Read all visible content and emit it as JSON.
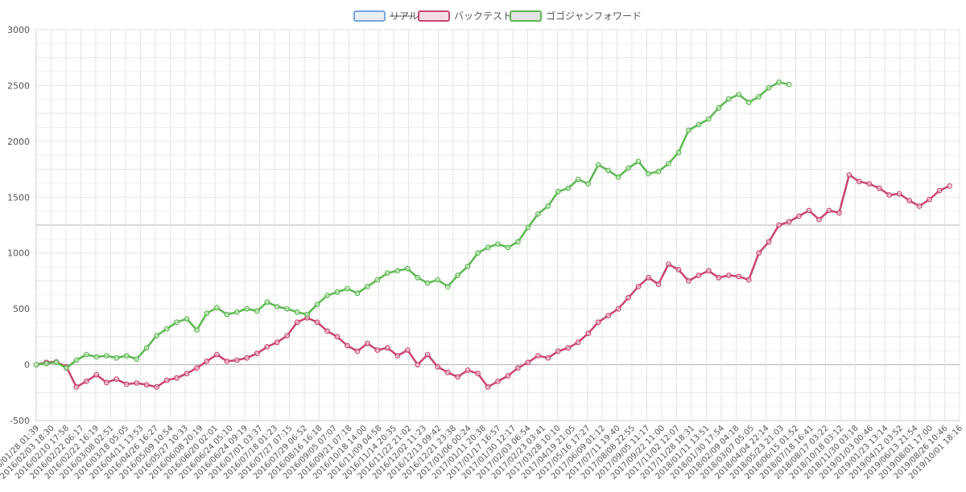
{
  "chart_data": {
    "type": "line",
    "title": "",
    "xlabel": "",
    "ylabel": "",
    "ylim": [
      -500,
      3000
    ],
    "yticks": [
      -500,
      0,
      500,
      1000,
      1500,
      2000,
      2500,
      3000
    ],
    "grid": true,
    "legend_position": "top-center",
    "x_tick_labels": [
      "2016/01/28 01:39",
      "2016/02/03 18:30",
      "2016/02/10 17:58",
      "2016/02/22 06:17",
      "2016/02/22 16:19",
      "2016/03/08 02:51",
      "2016/03/18 05:05",
      "2016/04/11 13:53",
      "2016/04/26 16:27",
      "2016/05/09 10:54",
      "2016/05/27 10:33",
      "2016/06/08 20:19",
      "2016/06/20 02:01",
      "2016/06/24 05:10",
      "2016/06/24 09:19",
      "2016/07/01 03:37",
      "2016/07/18 01:23",
      "2016/07/27 07:15",
      "2016/07/29 06:52",
      "2016/08/16 16:18",
      "2016/09/05 07:07",
      "2016/09/21 07:18",
      "2016/10/18 14:00",
      "2016/11/09 04:58",
      "2016/11/14 20:35",
      "2016/11/22 21:02",
      "2016/12/02 11:23",
      "2016/12/13 09:42",
      "2016/12/21 23:38",
      "2017/01/06 00:24",
      "2017/01/11 20:38",
      "2017/01/17 16:57",
      "2017/01/30 12:17",
      "2017/02/03 06:54",
      "2017/02/23 03:41",
      "2017/03/28 10:10",
      "2017/04/19 21:05",
      "2017/05/16 17:27",
      "2017/06/09 01:12",
      "2017/07/11 19:40",
      "2017/08/08 22:55",
      "2017/09/05 11:17",
      "2017/09/22 11:00",
      "2017/11/02 12:07",
      "2017/11/28 18:31",
      "2018/01/11 13:51",
      "2018/01/30 17:54",
      "2018/02/09 04:18",
      "2018/03/07 05:05",
      "2018/04/04 22:14",
      "2018/05/23 21:03",
      "2018/06/15 01:52",
      "2018/07/18 16:41",
      "2018/08/17 03:22",
      "2018/10/18 03:12",
      "2018/11/30 03:18",
      "2019/01/03 00:46",
      "2019/01/23 13:14",
      "2019/04/12 03:52",
      "2019/06/13 21:54",
      "2019/08/01 17:00",
      "2019/08/26 10:46",
      "2019/10/01 18:16"
    ],
    "colors": {
      "real_border": "#7aa6dc",
      "real_fill": "#e8eef6",
      "backtest": "#c8446f",
      "backtest_fill": "#f4dde6",
      "forward": "#5cb850",
      "forward_fill": "#e3e3e3",
      "grid": "#e5e5e5",
      "zero_line": "#b0b0b0"
    },
    "series": [
      {
        "name": "リアル",
        "hidden": true,
        "values": []
      },
      {
        "name": "バックテスト",
        "values": [
          [
            0,
            0
          ],
          [
            1,
            20
          ],
          [
            2,
            25
          ],
          [
            3,
            -20
          ],
          [
            4,
            -200
          ],
          [
            5,
            -150
          ],
          [
            6,
            -90
          ],
          [
            7,
            -160
          ],
          [
            8,
            -130
          ],
          [
            9,
            -175
          ],
          [
            10,
            -165
          ],
          [
            11,
            -180
          ],
          [
            12,
            -200
          ],
          [
            13,
            -140
          ],
          [
            14,
            -120
          ],
          [
            15,
            -80
          ],
          [
            16,
            -30
          ],
          [
            17,
            30
          ],
          [
            18,
            90
          ],
          [
            19,
            30
          ],
          [
            20,
            40
          ],
          [
            21,
            60
          ],
          [
            22,
            100
          ],
          [
            23,
            160
          ],
          [
            24,
            200
          ],
          [
            25,
            260
          ],
          [
            26,
            380
          ],
          [
            27,
            420
          ],
          [
            28,
            380
          ],
          [
            29,
            300
          ],
          [
            30,
            250
          ],
          [
            31,
            170
          ],
          [
            32,
            120
          ],
          [
            33,
            190
          ],
          [
            34,
            130
          ],
          [
            35,
            150
          ],
          [
            36,
            80
          ],
          [
            37,
            130
          ],
          [
            38,
            0
          ],
          [
            39,
            90
          ],
          [
            40,
            -20
          ],
          [
            41,
            -70
          ],
          [
            42,
            -110
          ],
          [
            43,
            -50
          ],
          [
            44,
            -80
          ],
          [
            45,
            -200
          ],
          [
            46,
            -150
          ],
          [
            47,
            -100
          ],
          [
            48,
            -30
          ],
          [
            49,
            20
          ],
          [
            50,
            80
          ],
          [
            51,
            60
          ],
          [
            52,
            120
          ],
          [
            53,
            150
          ],
          [
            54,
            200
          ],
          [
            55,
            280
          ],
          [
            56,
            380
          ],
          [
            57,
            440
          ],
          [
            58,
            500
          ],
          [
            59,
            600
          ],
          [
            60,
            700
          ],
          [
            61,
            780
          ],
          [
            62,
            720
          ],
          [
            63,
            900
          ],
          [
            64,
            850
          ],
          [
            65,
            750
          ],
          [
            66,
            800
          ],
          [
            67,
            840
          ],
          [
            68,
            780
          ],
          [
            69,
            800
          ],
          [
            70,
            790
          ],
          [
            71,
            760
          ],
          [
            72,
            1000
          ],
          [
            73,
            1100
          ],
          [
            74,
            1250
          ],
          [
            75,
            1280
          ],
          [
            76,
            1330
          ],
          [
            77,
            1380
          ],
          [
            78,
            1300
          ],
          [
            79,
            1380
          ],
          [
            80,
            1360
          ],
          [
            81,
            1700
          ],
          [
            82,
            1640
          ],
          [
            83,
            1620
          ],
          [
            84,
            1580
          ],
          [
            85,
            1520
          ],
          [
            86,
            1530
          ],
          [
            87,
            1470
          ],
          [
            88,
            1420
          ],
          [
            89,
            1480
          ],
          [
            90,
            1560
          ],
          [
            91,
            1600
          ]
        ]
      },
      {
        "name": "ゴゴジャンフォワード",
        "values": [
          [
            0,
            0
          ],
          [
            1,
            10
          ],
          [
            2,
            20
          ],
          [
            3,
            -30
          ],
          [
            4,
            40
          ],
          [
            5,
            90
          ],
          [
            6,
            70
          ],
          [
            7,
            80
          ],
          [
            8,
            60
          ],
          [
            9,
            80
          ],
          [
            10,
            50
          ],
          [
            11,
            150
          ],
          [
            12,
            260
          ],
          [
            13,
            320
          ],
          [
            14,
            380
          ],
          [
            15,
            410
          ],
          [
            16,
            310
          ],
          [
            17,
            460
          ],
          [
            18,
            510
          ],
          [
            19,
            450
          ],
          [
            20,
            470
          ],
          [
            21,
            500
          ],
          [
            22,
            480
          ],
          [
            23,
            560
          ],
          [
            24,
            520
          ],
          [
            25,
            500
          ],
          [
            26,
            470
          ],
          [
            27,
            450
          ],
          [
            28,
            540
          ],
          [
            29,
            620
          ],
          [
            30,
            650
          ],
          [
            31,
            680
          ],
          [
            32,
            640
          ],
          [
            33,
            700
          ],
          [
            34,
            760
          ],
          [
            35,
            820
          ],
          [
            36,
            840
          ],
          [
            37,
            860
          ],
          [
            38,
            780
          ],
          [
            39,
            730
          ],
          [
            40,
            760
          ],
          [
            41,
            700
          ],
          [
            42,
            800
          ],
          [
            43,
            880
          ],
          [
            44,
            1000
          ],
          [
            45,
            1050
          ],
          [
            46,
            1080
          ],
          [
            47,
            1050
          ],
          [
            48,
            1100
          ],
          [
            49,
            1230
          ],
          [
            50,
            1350
          ],
          [
            51,
            1420
          ],
          [
            52,
            1550
          ],
          [
            53,
            1580
          ],
          [
            54,
            1660
          ],
          [
            55,
            1620
          ],
          [
            56,
            1790
          ],
          [
            57,
            1740
          ],
          [
            58,
            1680
          ],
          [
            59,
            1760
          ],
          [
            60,
            1820
          ],
          [
            61,
            1710
          ],
          [
            62,
            1730
          ],
          [
            63,
            1800
          ],
          [
            64,
            1900
          ],
          [
            65,
            2100
          ],
          [
            66,
            2150
          ],
          [
            67,
            2200
          ],
          [
            68,
            2300
          ],
          [
            69,
            2380
          ],
          [
            70,
            2420
          ],
          [
            71,
            2350
          ],
          [
            72,
            2400
          ],
          [
            73,
            2480
          ],
          [
            74,
            2530
          ],
          [
            75,
            2510
          ]
        ]
      }
    ]
  }
}
